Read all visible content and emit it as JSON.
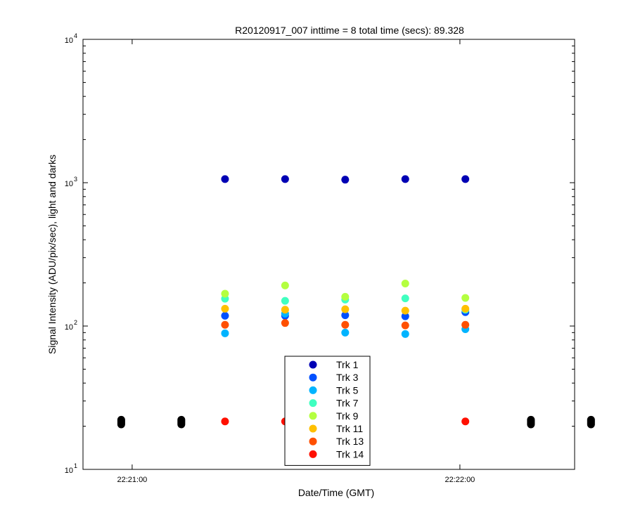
{
  "chart_data": {
    "type": "scatter",
    "title": "R20120917_007 inttime = 8 total time (secs): 89.328",
    "xlabel": "Date/Time (GMT)",
    "ylabel": "Signal Intensity (ADU/pix/sec), light and darks",
    "yscale": "log",
    "ylim": [
      10,
      10000
    ],
    "xlim": [
      "22:20:51",
      "22:22:21"
    ],
    "x_ticks": [
      "22:21:00",
      "22:22:00"
    ],
    "y_ticks": [
      {
        "value": 10,
        "base": "10",
        "exp": "1"
      },
      {
        "value": 100,
        "base": "10",
        "exp": "2"
      },
      {
        "value": 1000,
        "base": "10",
        "exp": "3"
      },
      {
        "value": 10000,
        "base": "10",
        "exp": "4"
      }
    ],
    "legend": {
      "placement": "bottom-center"
    },
    "series": [
      {
        "name": "Trk 1",
        "color": "#0000b4",
        "x": [
          "22:21:17",
          "22:21:28",
          "22:21:39",
          "22:21:50",
          "22:22:01"
        ],
        "y": [
          1060,
          1060,
          1050,
          1060,
          1060
        ]
      },
      {
        "name": "Trk 3",
        "color": "#0050ff",
        "x": [
          "22:21:17",
          "22:21:28",
          "22:21:39",
          "22:21:50",
          "22:22:01"
        ],
        "y": [
          118,
          118,
          119,
          117,
          125
        ]
      },
      {
        "name": "Trk 5",
        "color": "#00b4ff",
        "x": [
          "22:21:17",
          "22:21:28",
          "22:21:39",
          "22:21:50",
          "22:22:01"
        ],
        "y": [
          89,
          122,
          90,
          88,
          95
        ]
      },
      {
        "name": "Trk 7",
        "color": "#40ffc0",
        "x": [
          "22:21:17",
          "22:21:28",
          "22:21:39",
          "22:21:50",
          "22:22:01"
        ],
        "y": [
          155,
          150,
          153,
          156,
          130
        ]
      },
      {
        "name": "Trk 9",
        "color": "#b4ff40",
        "x": [
          "22:21:17",
          "22:21:28",
          "22:21:39",
          "22:21:50",
          "22:22:01"
        ],
        "y": [
          168,
          192,
          160,
          198,
          157
        ]
      },
      {
        "name": "Trk 11",
        "color": "#ffc000",
        "x": [
          "22:21:17",
          "22:21:28",
          "22:21:39",
          "22:21:50",
          "22:22:01"
        ],
        "y": [
          132,
          130,
          131,
          128,
          132
        ]
      },
      {
        "name": "Trk 13",
        "color": "#ff5000",
        "x": [
          "22:21:17",
          "22:21:28",
          "22:21:39",
          "22:21:50",
          "22:22:01"
        ],
        "y": [
          102,
          105,
          102,
          101,
          102
        ]
      },
      {
        "name": "Trk 14",
        "color": "#ff1000",
        "x": [
          "22:21:17",
          "22:21:28",
          "22:22:01"
        ],
        "y": [
          21.6,
          21.6,
          21.6
        ]
      },
      {
        "name": "",
        "color": "#000000",
        "x": [
          "22:20:58",
          "22:20:58",
          "22:20:58",
          "22:20:58",
          "22:20:58",
          "22:21:09",
          "22:21:09",
          "22:21:09",
          "22:21:09",
          "22:21:09",
          "22:22:13",
          "22:22:13",
          "22:22:13",
          "22:22:13",
          "22:22:13",
          "22:22:24",
          "22:22:24",
          "22:22:24",
          "22:22:24",
          "22:22:24"
        ],
        "y": [
          20.6,
          21.0,
          21.4,
          21.8,
          22.2,
          20.6,
          21.0,
          21.4,
          21.8,
          22.2,
          20.6,
          21.0,
          21.4,
          21.8,
          22.2,
          20.6,
          21.0,
          21.4,
          21.8,
          22.2
        ]
      }
    ]
  }
}
